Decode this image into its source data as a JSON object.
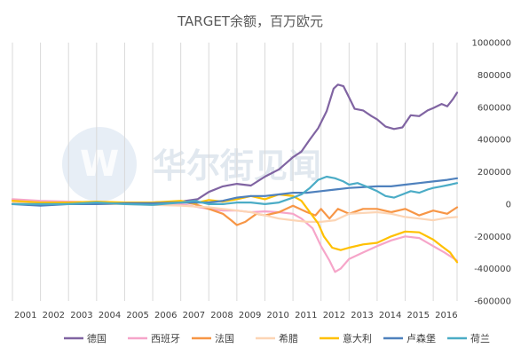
{
  "chart_data": {
    "type": "line",
    "title": "TARGET余额，百万欧元",
    "xlabel": "",
    "ylabel": "",
    "xlim": [
      2001.0,
      2016.85
    ],
    "ylim": [
      -600000,
      1000000
    ],
    "y_ticks": [
      1000000,
      800000,
      600000,
      400000,
      200000,
      0,
      -200000,
      -400000,
      -600000
    ],
    "y_tick_labels": [
      "1000000",
      "800000",
      "600000",
      "400000",
      "200000",
      "0",
      "-200000",
      "-400000",
      "-600000"
    ],
    "x_ticks": [
      2001,
      2002,
      2003,
      2004,
      2005,
      2006,
      2007,
      2008,
      2009,
      2010,
      2011,
      2012,
      2013,
      2014,
      2015,
      2016
    ],
    "x_tick_labels": [
      "2001",
      "2002",
      "2003",
      "2004",
      "2005",
      "2006",
      "2007",
      "2008",
      "2009",
      "2010",
      "2011",
      "2012",
      "2013",
      "2014",
      "2015",
      "2016"
    ],
    "grid": "vertical",
    "legend_position": "bottom",
    "watermark": "华尔街见闻",
    "series": [
      {
        "name": "德国",
        "color": "#8064a2",
        "x": [
          2001,
          2002,
          2003,
          2004,
          2005,
          2006,
          2007,
          2007.6,
          2008,
          2008.5,
          2009,
          2009.5,
          2010,
          2010.5,
          2011,
          2011.3,
          2011.6,
          2011.9,
          2012.2,
          2012.45,
          2012.6,
          2012.8,
          2013,
          2013.2,
          2013.5,
          2013.8,
          2014,
          2014.3,
          2014.6,
          2014.9,
          2015.2,
          2015.5,
          2015.8,
          2016,
          2016.3,
          2016.5,
          2016.7,
          2016.85
        ],
        "y": [
          0,
          3000,
          5000,
          5000,
          7000,
          10000,
          15000,
          30000,
          75000,
          110000,
          125000,
          115000,
          170000,
          215000,
          290000,
          325000,
          400000,
          470000,
          575000,
          715000,
          740000,
          730000,
          660000,
          590000,
          580000,
          545000,
          525000,
          480000,
          465000,
          475000,
          550000,
          545000,
          580000,
          595000,
          620000,
          605000,
          650000,
          690000
        ]
      },
      {
        "name": "西班牙",
        "color": "#f6a5c9",
        "x": [
          2001,
          2002,
          2003,
          2004,
          2005,
          2006,
          2007,
          2008,
          2008.5,
          2009,
          2009.5,
          2010,
          2010.5,
          2011,
          2011.3,
          2011.7,
          2012,
          2012.3,
          2012.5,
          2012.7,
          2013,
          2013.5,
          2014,
          2014.5,
          2015,
          2015.5,
          2016,
          2016.4,
          2016.85
        ],
        "y": [
          30000,
          20000,
          15000,
          10000,
          5000,
          0,
          0,
          -30000,
          -40000,
          -40000,
          -50000,
          -45000,
          -50000,
          -60000,
          -90000,
          -150000,
          -260000,
          -350000,
          -420000,
          -400000,
          -340000,
          -300000,
          -260000,
          -225000,
          -200000,
          -210000,
          -260000,
          -300000,
          -350000
        ]
      },
      {
        "name": "法国",
        "color": "#f79646",
        "x": [
          2001,
          2002,
          2003,
          2004,
          2005,
          2006,
          2007,
          2007.5,
          2008,
          2008.5,
          2008.8,
          2009,
          2009.3,
          2009.7,
          2010,
          2010.5,
          2011,
          2011.5,
          2011.8,
          2012,
          2012.3,
          2012.6,
          2013,
          2013.5,
          2014,
          2014.5,
          2015,
          2015.5,
          2016,
          2016.5,
          2016.85
        ],
        "y": [
          0,
          5000,
          5000,
          10000,
          5000,
          10000,
          15000,
          0,
          -30000,
          -60000,
          -100000,
          -130000,
          -110000,
          -60000,
          -70000,
          -50000,
          -10000,
          -50000,
          -70000,
          -30000,
          -90000,
          -30000,
          -60000,
          -30000,
          -30000,
          -50000,
          -30000,
          -70000,
          -40000,
          -60000,
          -20000
        ]
      },
      {
        "name": "希腊",
        "color": "#fcd5b5",
        "x": [
          2001,
          2002,
          2003,
          2004,
          2005,
          2006,
          2007,
          2008,
          2008.5,
          2009,
          2009.5,
          2010,
          2010.5,
          2011,
          2011.5,
          2012,
          2012.5,
          2013,
          2013.5,
          2014,
          2014.5,
          2015,
          2015.5,
          2016,
          2016.5,
          2016.85
        ],
        "y": [
          10000,
          5000,
          5000,
          0,
          0,
          -5000,
          -10000,
          -20000,
          -30000,
          -40000,
          -50000,
          -70000,
          -90000,
          -100000,
          -110000,
          -110000,
          -100000,
          -60000,
          -55000,
          -50000,
          -60000,
          -80000,
          -90000,
          -100000,
          -85000,
          -80000
        ]
      },
      {
        "name": "意大利",
        "color": "#ffc000",
        "x": [
          2001,
          2002,
          2003,
          2004,
          2005,
          2006,
          2007,
          2007.5,
          2008,
          2008.5,
          2009,
          2009.5,
          2010,
          2010.5,
          2011,
          2011.3,
          2011.6,
          2011.9,
          2012.1,
          2012.4,
          2012.7,
          2013,
          2013.5,
          2014,
          2014.5,
          2015,
          2015.5,
          2016,
          2016.3,
          2016.6,
          2016.85
        ],
        "y": [
          20000,
          10000,
          10000,
          15000,
          10000,
          10000,
          20000,
          5000,
          25000,
          15000,
          30000,
          50000,
          30000,
          60000,
          50000,
          20000,
          -50000,
          -120000,
          -200000,
          -270000,
          -285000,
          -270000,
          -250000,
          -240000,
          -200000,
          -170000,
          -175000,
          -220000,
          -260000,
          -300000,
          -360000
        ]
      },
      {
        "name": "卢森堡",
        "color": "#4f81bd",
        "x": [
          2001,
          2002,
          2003,
          2004,
          2005,
          2006,
          2007,
          2008,
          2008.5,
          2009,
          2009.5,
          2010,
          2010.5,
          2011,
          2011.5,
          2012,
          2012.5,
          2013,
          2013.5,
          2014,
          2014.5,
          2015,
          2015.5,
          2016,
          2016.5,
          2016.85
        ],
        "y": [
          0,
          -10000,
          0,
          0,
          5000,
          5000,
          10000,
          10000,
          20000,
          40000,
          50000,
          50000,
          60000,
          70000,
          70000,
          80000,
          90000,
          100000,
          105000,
          110000,
          110000,
          120000,
          130000,
          140000,
          150000,
          160000
        ]
      },
      {
        "name": "荷兰",
        "color": "#4bacc6",
        "x": [
          2001,
          2002,
          2003,
          2004,
          2005,
          2006,
          2007,
          2007.5,
          2008,
          2008.5,
          2009,
          2009.5,
          2010,
          2010.5,
          2011,
          2011.3,
          2011.6,
          2011.9,
          2012.2,
          2012.5,
          2012.8,
          2013,
          2013.3,
          2013.6,
          2014,
          2014.3,
          2014.6,
          2014.9,
          2015.2,
          2015.5,
          2015.8,
          2016,
          2016.3,
          2016.6,
          2016.85
        ],
        "y": [
          0,
          0,
          0,
          10000,
          0,
          -5000,
          10000,
          20000,
          0,
          0,
          10000,
          10000,
          0,
          10000,
          40000,
          60000,
          100000,
          150000,
          170000,
          160000,
          140000,
          120000,
          130000,
          110000,
          80000,
          50000,
          40000,
          60000,
          80000,
          70000,
          90000,
          100000,
          110000,
          120000,
          130000
        ]
      }
    ]
  }
}
